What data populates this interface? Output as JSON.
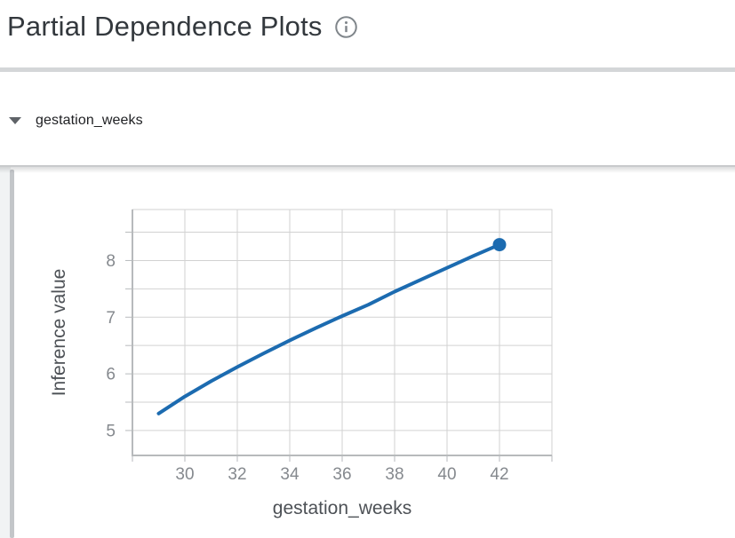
{
  "header": {
    "title": "Partial Dependence Plots",
    "info_icon": "info"
  },
  "section": {
    "label": "gestation_weeks",
    "state": "expanded"
  },
  "chart_data": {
    "type": "line",
    "title": "",
    "xlabel": "gestation_weeks",
    "ylabel": "Inference value",
    "x": [
      29,
      30,
      31,
      32,
      33,
      34,
      35,
      36,
      37,
      38,
      39,
      40,
      41,
      42
    ],
    "y": [
      5.3,
      5.6,
      5.87,
      6.12,
      6.36,
      6.59,
      6.81,
      7.02,
      7.22,
      7.45,
      7.66,
      7.87,
      8.08,
      8.28
    ],
    "xlim": [
      28,
      44
    ],
    "ylim": [
      4.56,
      8.9
    ],
    "x_tick_labels": [
      30,
      32,
      34,
      36,
      38,
      40,
      42
    ],
    "y_tick_labels": [
      5,
      6,
      7,
      8
    ],
    "x_grid_step": 2,
    "y_grid_step": 0.5,
    "grid": true,
    "legend_position": "none",
    "line_color": "#1c6bb0",
    "endpoint_marker": {
      "x": 42,
      "y": 8.28
    },
    "grid_color": "#d2d2d2",
    "axis_color": "#b7babc",
    "tick_label_color": "#85898e",
    "axis_title_color": "#4d5156"
  }
}
